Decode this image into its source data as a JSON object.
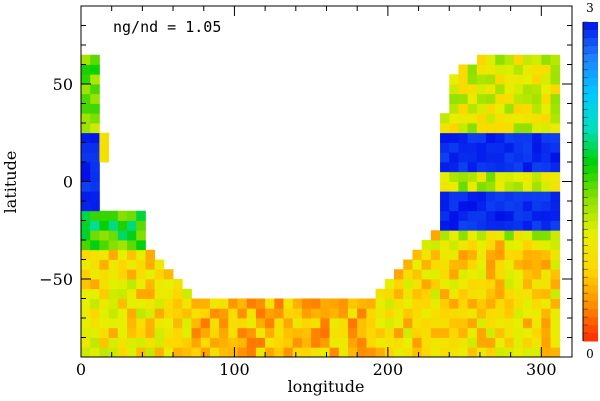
{
  "chart_data": {
    "type": "heatmap",
    "annotation": "ng/nd = 1.05",
    "xlabel": "longitude",
    "ylabel": "latitude",
    "xlim": [
      0,
      320
    ],
    "ylim": [
      -90,
      90
    ],
    "x_ticks": [
      0,
      100,
      200,
      300
    ],
    "x_tick_labels": [
      "0",
      "100",
      "200",
      "300"
    ],
    "y_ticks": [
      50,
      0,
      -50
    ],
    "y_tick_labels": [
      "50",
      "0",
      "−50"
    ],
    "cell_size_deg": [
      6,
      5
    ],
    "colorbar": {
      "min": 0,
      "max": 3,
      "min_label": "0",
      "max_label": "3",
      "colormap": [
        "#ff2a00",
        "#ff8c00",
        "#ffd500",
        "#e6f000",
        "#8ce000",
        "#00d000",
        "#00e0c0",
        "#00c8ff",
        "#2080ff",
        "#0010e8"
      ]
    },
    "regions": [
      {
        "name": "west-strip",
        "lon": [
          0,
          12
        ],
        "lat": [
          -90,
          65
        ],
        "level": 1.4
      },
      {
        "name": "west-blue",
        "lon": [
          0,
          12
        ],
        "lat": [
          -20,
          25
        ],
        "level": 3.0
      },
      {
        "name": "west-band",
        "lon": [
          0,
          42
        ],
        "lat": [
          -35,
          -15
        ],
        "level": 1.6
      },
      {
        "name": "southern-floor",
        "lon": [
          0,
          310
        ],
        "lat": [
          -90,
          -65
        ],
        "level": 0.55
      },
      {
        "name": "west-south",
        "lon": [
          0,
          70
        ],
        "lat": [
          -90,
          -35
        ],
        "level": 0.8
      },
      {
        "name": "south-middle",
        "lon": [
          70,
          190
        ],
        "lat": [
          -90,
          -60
        ],
        "level": 0.6
      },
      {
        "name": "east-south",
        "lon": [
          190,
          310
        ],
        "lat": [
          -90,
          -30
        ],
        "level": 0.75
      },
      {
        "name": "east-mid",
        "lon": [
          230,
          310
        ],
        "lat": [
          -30,
          35
        ],
        "level": 1.1
      },
      {
        "name": "east-north",
        "lon": [
          240,
          310
        ],
        "lat": [
          25,
          65
        ],
        "level": 1.0
      },
      {
        "name": "east-blue-upper",
        "lon": [
          230,
          310
        ],
        "lat": [
          5,
          25
        ],
        "level": 3.0
      },
      {
        "name": "east-blue-lower",
        "lon": [
          230,
          310
        ],
        "lat": [
          -25,
          -5
        ],
        "level": 3.0
      }
    ]
  }
}
